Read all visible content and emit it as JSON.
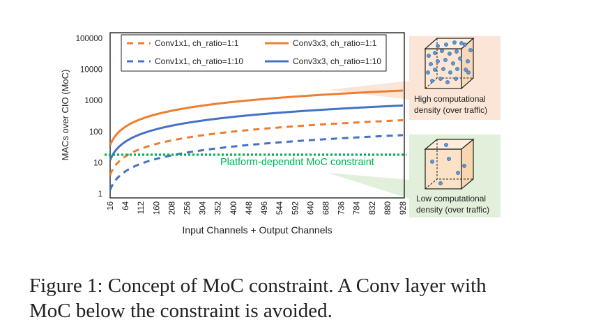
{
  "chart_data": {
    "type": "line",
    "xlabel": "Input Channels + Output Channels",
    "ylabel": "MACs over CIO (MoC)",
    "yscale": "log",
    "ylim": [
      1,
      100000
    ],
    "yticks": [
      "1",
      "10",
      "100",
      "1000",
      "10000",
      "100000"
    ],
    "xlim": [
      16,
      928
    ],
    "x_ticks": [
      16,
      64,
      112,
      160,
      208,
      256,
      304,
      352,
      400,
      448,
      496,
      544,
      592,
      640,
      688,
      736,
      784,
      832,
      880,
      928
    ],
    "x_tick_labels": [
      "16",
      "64",
      "112",
      "160",
      "208",
      "256",
      "304",
      "352",
      "400",
      "448",
      "496",
      "544",
      "592",
      "640",
      "688",
      "736",
      "784",
      "832",
      "880",
      "928"
    ],
    "legend_position": "top",
    "series": [
      {
        "name": "Conv1x1, ch_ratio=1:1",
        "color": "#ed7d31",
        "style": "dashed",
        "x": [
          16,
          64,
          112,
          160,
          208,
          256,
          304,
          352,
          400,
          448,
          496,
          544,
          592,
          640,
          688,
          736,
          784,
          832,
          880,
          928
        ],
        "values": [
          4,
          16,
          28,
          40,
          52,
          64,
          76,
          88,
          100,
          112,
          124,
          136,
          148,
          160,
          172,
          184,
          196,
          208,
          220,
          232
        ]
      },
      {
        "name": "Conv3x3, ch_ratio=1:1",
        "color": "#ed7d31",
        "style": "solid",
        "x": [
          16,
          64,
          112,
          160,
          208,
          256,
          304,
          352,
          400,
          448,
          496,
          544,
          592,
          640,
          688,
          736,
          784,
          832,
          880,
          928
        ],
        "values": [
          36,
          144,
          252,
          360,
          468,
          576,
          684,
          792,
          900,
          1008,
          1116,
          1224,
          1332,
          1440,
          1548,
          1656,
          1764,
          1872,
          1980,
          2088
        ]
      },
      {
        "name": "Conv1x1, ch_ratio=1:10",
        "color": "#4472c4",
        "style": "dashed",
        "x": [
          16,
          64,
          112,
          160,
          208,
          256,
          304,
          352,
          400,
          448,
          496,
          544,
          592,
          640,
          688,
          736,
          784,
          832,
          880,
          928
        ],
        "values": [
          1.32,
          5.29,
          9.26,
          13.2,
          17.2,
          21.2,
          25.1,
          29.1,
          33.1,
          37.0,
          41.0,
          45.0,
          48.9,
          52.9,
          56.9,
          60.8,
          64.8,
          68.8,
          72.7,
          76.7
        ]
      },
      {
        "name": "Conv3x3, ch_ratio=1:10",
        "color": "#4472c4",
        "style": "solid",
        "x": [
          16,
          64,
          112,
          160,
          208,
          256,
          304,
          352,
          400,
          448,
          496,
          544,
          592,
          640,
          688,
          736,
          784,
          832,
          880,
          928
        ],
        "values": [
          11.9,
          47.6,
          83.3,
          119,
          155,
          190,
          226,
          262,
          298,
          333,
          369,
          405,
          440,
          476,
          512,
          548,
          583,
          619,
          655,
          690
        ]
      }
    ],
    "threshold": {
      "label": "Platform-dependnt MoC constraint",
      "value": 18,
      "color": "#00b050"
    },
    "annotations": [
      {
        "id": "high",
        "line1": "High computational",
        "line2": "density (over traffic)",
        "bg": "#fbe5d6",
        "target_series": "Conv3x3, ch_ratio=1:1"
      },
      {
        "id": "low",
        "line1": "Low computational",
        "line2": "density (over traffic)",
        "bg": "#e2efda",
        "target_series": "Conv1x1, ch_ratio=1:10"
      }
    ],
    "caption": {
      "line1": "Figure 1:  Concept of MoC constraint.  A Conv layer with",
      "line2": "MoC below the constraint is avoided."
    }
  }
}
